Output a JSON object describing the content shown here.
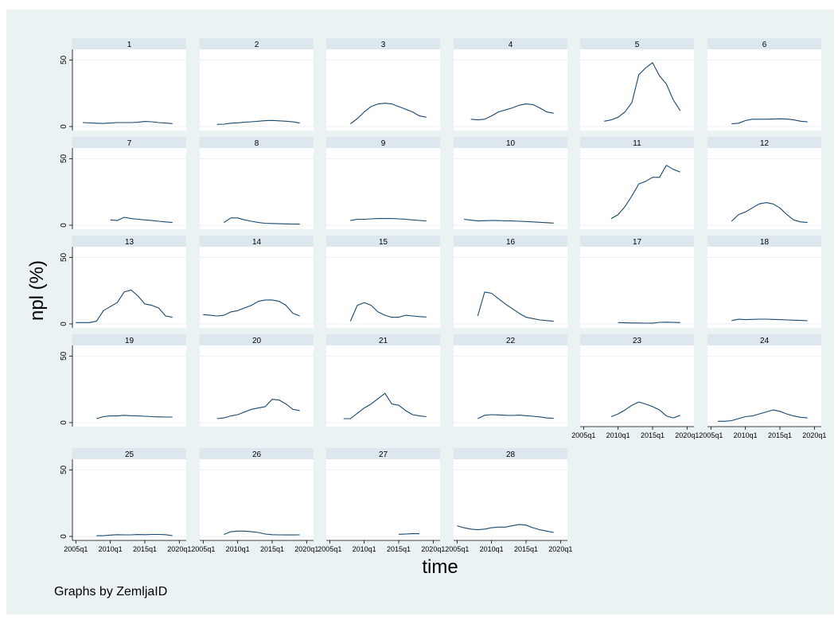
{
  "chart_data": {
    "type": "line",
    "subplot_type": "small-multiples",
    "ylabel": "npl (%)",
    "xlabel": "time",
    "note": "Graphs by ZemljaID",
    "colors": {
      "outer_background": "#eaf2f3",
      "plot_background": "#ffffff",
      "title_strip": "#dde7ee",
      "line": "#1a476f",
      "gridline": "#eaf2f3",
      "axis": "#000000"
    },
    "y_ticks": [
      0,
      50
    ],
    "y_tick_labels": [
      "0",
      "50"
    ],
    "ylim": [
      -3,
      58
    ],
    "x_ticks": [
      2005,
      2010,
      2015,
      2020
    ],
    "x_tick_labels": [
      "2005q1",
      "2010q1",
      "2015q1",
      "2020q1"
    ],
    "xlim": [
      2004.5,
      2021
    ],
    "panels": [
      {
        "label": "1",
        "x": [
          2006,
          2008,
          2009,
          2010,
          2011,
          2012,
          2013,
          2014,
          2015,
          2016,
          2017,
          2018,
          2019
        ],
        "y": [
          3,
          2.5,
          2.3,
          2.6,
          3,
          3,
          3,
          3.2,
          3.8,
          3.6,
          3,
          2.6,
          2.2
        ]
      },
      {
        "label": "2",
        "x": [
          2007,
          2008,
          2009,
          2010,
          2011,
          2012,
          2013,
          2014,
          2015,
          2016,
          2017,
          2018,
          2019
        ],
        "y": [
          1.6,
          1.8,
          2.5,
          2.8,
          3.2,
          3.6,
          4,
          4.4,
          4.6,
          4.3,
          4,
          3.5,
          2.6
        ]
      },
      {
        "label": "3",
        "x": [
          2008,
          2009,
          2010,
          2011,
          2012,
          2013,
          2014,
          2015,
          2016,
          2017,
          2018,
          2019
        ],
        "y": [
          2,
          6,
          11,
          15,
          17,
          17.5,
          17,
          15,
          13,
          11,
          8,
          7
        ]
      },
      {
        "label": "4",
        "x": [
          2007,
          2008,
          2009,
          2010,
          2011,
          2012,
          2013,
          2014,
          2015,
          2016,
          2017,
          2018,
          2019
        ],
        "y": [
          5.5,
          5,
          5.5,
          8,
          11,
          12.5,
          14,
          16,
          17,
          16.5,
          14,
          11,
          10
        ]
      },
      {
        "label": "5",
        "x": [
          2008,
          2009,
          2010,
          2011,
          2012,
          2013,
          2014,
          2015,
          2016,
          2017,
          2018,
          2019
        ],
        "y": [
          4,
          5,
          7,
          11,
          18,
          39,
          44,
          48,
          38,
          32,
          20,
          12
        ]
      },
      {
        "label": "6",
        "x": [
          2008,
          2009,
          2010,
          2011,
          2012,
          2013,
          2014,
          2015,
          2016,
          2017,
          2018,
          2019
        ],
        "y": [
          2,
          2.5,
          4.5,
          5.5,
          5.5,
          5.5,
          5.6,
          5.8,
          5.6,
          5,
          4,
          3.5
        ]
      },
      {
        "label": "7",
        "x": [
          2010,
          2011,
          2012,
          2013,
          2014,
          2015,
          2016,
          2017,
          2018,
          2019
        ],
        "y": [
          4,
          3.5,
          6,
          5,
          4.5,
          4,
          3.5,
          3,
          2.5,
          2
        ]
      },
      {
        "label": "8",
        "x": [
          2008,
          2009,
          2010,
          2011,
          2012,
          2013,
          2014,
          2015,
          2016,
          2017,
          2018,
          2019
        ],
        "y": [
          2,
          5.5,
          5.5,
          4,
          3,
          2,
          1.5,
          1.3,
          1.1,
          1,
          0.9,
          0.8
        ]
      },
      {
        "label": "9",
        "x": [
          2008,
          2009,
          2010,
          2011,
          2012,
          2013,
          2014,
          2015,
          2016,
          2017,
          2018,
          2019
        ],
        "y": [
          3.5,
          4.5,
          4.5,
          4.8,
          5,
          5,
          5,
          4.8,
          4.5,
          4,
          3.6,
          3.2
        ]
      },
      {
        "label": "10",
        "x": [
          2006,
          2007,
          2008,
          2009,
          2010,
          2011,
          2012,
          2013,
          2014,
          2015,
          2016,
          2017,
          2018,
          2019
        ],
        "y": [
          4.5,
          3.8,
          3.2,
          3.4,
          3.6,
          3.5,
          3.3,
          3.2,
          3,
          2.8,
          2.5,
          2.2,
          1.9,
          1.6
        ]
      },
      {
        "label": "11",
        "x": [
          2009,
          2010,
          2011,
          2012,
          2013,
          2014,
          2015,
          2016,
          2017,
          2018,
          2019
        ],
        "y": [
          5,
          8,
          14,
          22,
          31,
          33,
          36,
          36,
          45,
          42,
          40
        ]
      },
      {
        "label": "12",
        "x": [
          2008,
          2009,
          2010,
          2011,
          2012,
          2013,
          2014,
          2015,
          2016,
          2017,
          2018,
          2019
        ],
        "y": [
          3,
          8,
          10,
          13,
          16,
          17,
          16,
          13,
          8,
          4,
          2.5,
          2
        ]
      },
      {
        "label": "13",
        "x": [
          2005,
          2006,
          2007,
          2008,
          2009,
          2010,
          2011,
          2012,
          2013,
          2014,
          2015,
          2016,
          2017,
          2018,
          2019
        ],
        "y": [
          1,
          1,
          1,
          2,
          10,
          13,
          16,
          24,
          25.5,
          21,
          15,
          14,
          12,
          6,
          5
        ]
      },
      {
        "label": "14",
        "x": [
          2005,
          2006,
          2007,
          2008,
          2009,
          2010,
          2011,
          2012,
          2013,
          2014,
          2015,
          2016,
          2017,
          2018,
          2019
        ],
        "y": [
          7,
          6.5,
          6,
          6.5,
          9,
          10,
          12,
          14,
          17,
          18,
          18,
          17,
          14,
          8,
          6
        ]
      },
      {
        "label": "15",
        "x": [
          2008,
          2009,
          2010,
          2011,
          2012,
          2013,
          2014,
          2015,
          2016,
          2017,
          2018,
          2019
        ],
        "y": [
          2,
          14,
          16,
          14,
          9,
          6.5,
          5,
          5,
          6.5,
          6,
          5.5,
          5.2
        ]
      },
      {
        "label": "16",
        "x": [
          2008,
          2009,
          2010,
          2011,
          2012,
          2013,
          2014,
          2015,
          2016,
          2017,
          2018,
          2019
        ],
        "y": [
          6,
          24,
          23,
          19,
          15,
          11.5,
          8,
          5,
          4,
          3,
          2.5,
          2
        ]
      },
      {
        "label": "17",
        "x": [
          2010,
          2011,
          2012,
          2013,
          2014,
          2015,
          2016,
          2017,
          2018,
          2019
        ],
        "y": [
          1,
          0.8,
          0.7,
          0.7,
          0.6,
          0.5,
          1.2,
          1.3,
          1.1,
          1
        ]
      },
      {
        "label": "18",
        "x": [
          2008,
          2009,
          2010,
          2011,
          2012,
          2013,
          2014,
          2015,
          2016,
          2017,
          2018,
          2019
        ],
        "y": [
          2.5,
          3.5,
          3.2,
          3.4,
          3.6,
          3.6,
          3.4,
          3.2,
          3,
          2.8,
          2.6,
          2.4
        ]
      },
      {
        "label": "19",
        "x": [
          2008,
          2009,
          2010,
          2011,
          2012,
          2013,
          2014,
          2015,
          2016,
          2017,
          2018,
          2019
        ],
        "y": [
          3,
          4.5,
          5,
          5,
          5.5,
          5.2,
          5,
          4.8,
          4.5,
          4.3,
          4.2,
          4.2
        ]
      },
      {
        "label": "20",
        "x": [
          2007,
          2008,
          2009,
          2010,
          2011,
          2012,
          2013,
          2014,
          2015,
          2016,
          2017,
          2018,
          2019
        ],
        "y": [
          3,
          3.5,
          5,
          6,
          8,
          10,
          11,
          12,
          17.5,
          17,
          14,
          10,
          9
        ]
      },
      {
        "label": "21",
        "x": [
          2007,
          2008,
          2009,
          2010,
          2011,
          2012,
          2013,
          2014,
          2015,
          2016,
          2017,
          2018,
          2019
        ],
        "y": [
          3,
          3,
          7,
          11,
          14,
          18,
          22,
          14,
          13,
          9,
          6,
          5,
          4.5
        ]
      },
      {
        "label": "22",
        "x": [
          2008,
          2009,
          2010,
          2011,
          2012,
          2013,
          2014,
          2015,
          2016,
          2017,
          2018,
          2019
        ],
        "y": [
          3,
          5.5,
          6,
          5.8,
          5.5,
          5.4,
          5.6,
          5.2,
          4.8,
          4.3,
          3.5,
          3.2
        ]
      },
      {
        "label": "23",
        "x": [
          2009,
          2010,
          2011,
          2012,
          2013,
          2014,
          2015,
          2016,
          2017,
          2018,
          2019
        ],
        "y": [
          4.5,
          6.5,
          9.5,
          13,
          15.5,
          14,
          12,
          9.5,
          5,
          3.5,
          5.5
        ]
      },
      {
        "label": "24",
        "x": [
          2006,
          2007,
          2008,
          2009,
          2010,
          2011,
          2012,
          2013,
          2014,
          2015,
          2016,
          2017,
          2018,
          2019
        ],
        "y": [
          1,
          1,
          1.5,
          3,
          4.5,
          5,
          6.5,
          8,
          9.5,
          8.5,
          6.5,
          5,
          4,
          3.5
        ]
      },
      {
        "label": "25",
        "x": [
          2008,
          2009,
          2010,
          2011,
          2012,
          2013,
          2014,
          2015,
          2016,
          2017,
          2018,
          2019
        ],
        "y": [
          0.5,
          0.6,
          1,
          1.3,
          1.2,
          1.2,
          1.4,
          1.3,
          1.5,
          1.5,
          1.3,
          0.6
        ]
      },
      {
        "label": "26",
        "x": [
          2008,
          2009,
          2010,
          2011,
          2012,
          2013,
          2014,
          2015,
          2016,
          2017,
          2018,
          2019
        ],
        "y": [
          1.5,
          3.5,
          4,
          4,
          3.5,
          3,
          1.8,
          1.3,
          1.2,
          1.1,
          1.1,
          1.2
        ]
      },
      {
        "label": "27",
        "x": [
          2015,
          2016,
          2017,
          2018
        ],
        "y": [
          1.6,
          1.8,
          2,
          2
        ]
      },
      {
        "label": "28",
        "x": [
          2005,
          2006,
          2007,
          2008,
          2009,
          2010,
          2011,
          2012,
          2013,
          2014,
          2015,
          2016,
          2017,
          2018,
          2019
        ],
        "y": [
          8,
          6.5,
          5.5,
          5,
          5.5,
          6.5,
          7,
          7,
          8,
          9,
          8.5,
          6.5,
          5,
          4,
          3
        ]
      }
    ]
  }
}
